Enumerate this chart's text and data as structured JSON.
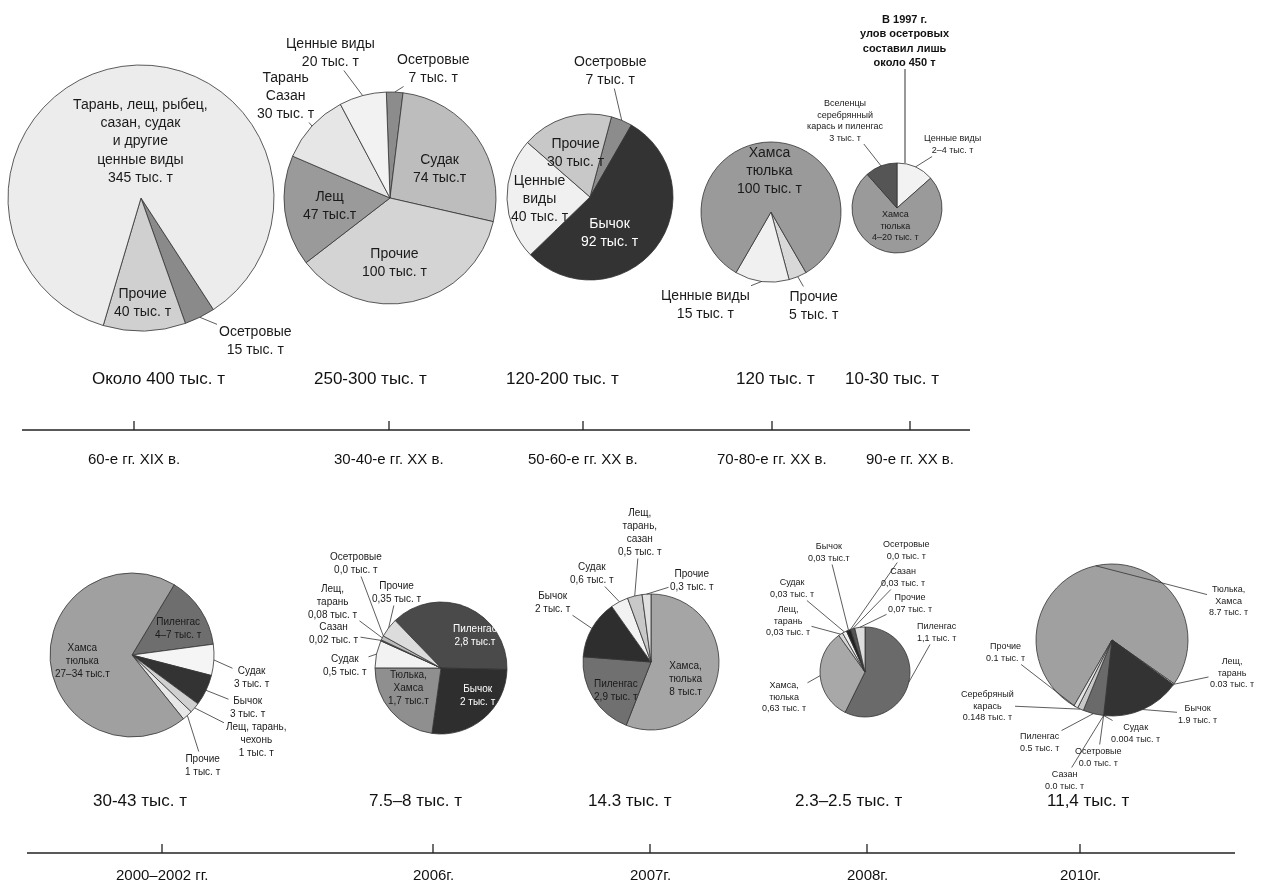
{
  "chart_data": [
    {
      "type": "pie",
      "subtitle": "Около 400 тыс. т",
      "xlabel": "60-е гг. XIX в.",
      "categories": [
        "Осетровые",
        "Прочие",
        "Тарань, лещ, рыбец,\nсазан, судак\nи другие\nценные виды"
      ],
      "values": [
        15,
        40,
        345
      ],
      "value_labels": [
        "15 тыс. т",
        "40 тыс. т",
        "345 тыс. т"
      ],
      "colors": [
        "#8a8a8a",
        "#d0d0d0",
        "#ececec"
      ]
    },
    {
      "type": "pie",
      "subtitle": "250-300 тыс. т",
      "xlabel": "30-40-е гг. XX в.",
      "categories": [
        "Осетровые",
        "Судак",
        "Прочие",
        "Лещ",
        "Тарань\nСазан",
        "Ценные виды"
      ],
      "values": [
        7,
        74,
        100,
        47,
        30,
        20
      ],
      "value_labels": [
        "7 тыс. т",
        "74 тыс.т",
        "100 тыс. т",
        "47 тыс.т",
        "30 тыс. т",
        "20 тыс. т"
      ],
      "colors": [
        "#8c8c8c",
        "#bdbdbd",
        "#d4d4d4",
        "#9a9a9a",
        "#e6e6e6",
        "#f2f2f2"
      ]
    },
    {
      "type": "pie",
      "subtitle": "120-200 тыс. т",
      "xlabel": "50-60-е гг. XX в.",
      "categories": [
        "Осетровые",
        "Бычок",
        "Ценные\nвиды",
        "Прочие"
      ],
      "values": [
        7,
        92,
        40,
        30
      ],
      "value_labels": [
        "7 тыс. т",
        "92 тыс. т",
        "40 тыс. т",
        "30 тыс. т"
      ],
      "colors": [
        "#8c8c8c",
        "#333333",
        "#f0f0f0",
        "#c8c8c8"
      ]
    },
    {
      "type": "pie",
      "subtitle": "120 тыс. т",
      "xlabel": "70-80-е гг. XX в.",
      "categories": [
        "Прочие",
        "Ценные виды",
        "Хамса\nтюлька"
      ],
      "values": [
        5,
        15,
        100
      ],
      "value_labels": [
        "5 тыс. т",
        "15 тыс. т",
        "100 тыс. т"
      ],
      "colors": [
        "#d8d8d8",
        "#f0f0f0",
        "#9a9a9a"
      ]
    },
    {
      "type": "pie",
      "subtitle": "10-30 тыс. т",
      "xlabel": "90-е гг. XX в.",
      "categories": [
        "Ценные виды",
        "Хамса\nтюлька",
        "Вселенцы\nсеребрянный\nкарась и пиленгас"
      ],
      "values": [
        3.5,
        19.5,
        3
      ],
      "value_labels": [
        "2–4 тыс. т",
        "4–20 тыс. т",
        "3 тыс. т"
      ],
      "colors": [
        "#f2f2f2",
        "#9a9a9a",
        "#555555"
      ],
      "annotations": [
        "В 1997 г.\nулов осетровых\nсоставил лишь\nоколо 450 т"
      ]
    },
    {
      "type": "pie",
      "subtitle": "30-43 тыс. т",
      "xlabel": "2000–2002 гг.",
      "categories": [
        "Пиленгас",
        "Судак",
        "Бычок",
        "Лещ, тарань,\nчехонь",
        "Прочие",
        "Хамса\nтюлька"
      ],
      "values": [
        7,
        3,
        3,
        1,
        1,
        34
      ],
      "value_labels": [
        "4–7 тыс. т",
        "3 тыс. т",
        "3 тыс. т",
        "1 тыс. т",
        "1 тыс. т",
        "27–34 тыс.т"
      ],
      "colors": [
        "#6e6e6e",
        "#f5f5f5",
        "#333333",
        "#d0d0d0",
        "#e8e8e8",
        "#a0a0a0"
      ]
    },
    {
      "type": "pie",
      "subtitle": "7.5–8 тыс. т",
      "xlabel": "2006г.",
      "categories": [
        "Пиленгас",
        "Бычок",
        "Тюлька,\nХамса",
        "Судак",
        "Сазан",
        "Лещ,\nтарань",
        "Осетровые",
        "Прочие"
      ],
      "values": [
        2.8,
        2,
        1.7,
        0.5,
        0.02,
        0.08,
        0,
        0.35
      ],
      "value_labels": [
        "2,8 тыс.т",
        "2 тыс. т",
        "1,7 тыс.т",
        "0,5 тыс. т",
        "0,02 тыс. т",
        "0,08 тыс. т",
        "0,0 тыс. т",
        "0,35 тыс. т"
      ],
      "colors": [
        "#4a4a4a",
        "#2e2e2e",
        "#8f8f8f",
        "#f2f2f2",
        "#555555",
        "#bbbbbb",
        "#777777",
        "#dcdcdc"
      ]
    },
    {
      "type": "pie",
      "subtitle": "14.3 тыс. т",
      "xlabel": "2007г.",
      "categories": [
        "Хамса,\nтюлька",
        "Пиленгас",
        "Бычок",
        "Судак",
        "Лещ,\nтарань,\nсазан",
        "Прочие"
      ],
      "values": [
        8,
        2.9,
        2,
        0.6,
        0.5,
        0.3
      ],
      "value_labels": [
        "8 тыс.т",
        "2,9 тыс. т",
        "2 тыс. т",
        "0,6 тыс. т",
        "0,5 тыс. т",
        "0,3 тыс. т"
      ],
      "colors": [
        "#a5a5a5",
        "#707070",
        "#2e2e2e",
        "#f2f2f2",
        "#c8c8c8",
        "#e0e0e0"
      ]
    },
    {
      "type": "pie",
      "subtitle": "2.3–2.5 тыс. т",
      "xlabel": "2008г.",
      "categories": [
        "Пиленгас",
        "Хамса,\nтюлька",
        "Лещ,\nтарань",
        "Судак",
        "Бычок",
        "Осетровые",
        "Сазан",
        "Прочие"
      ],
      "values": [
        1.1,
        0.63,
        0.03,
        0.03,
        0.03,
        0,
        0.03,
        0.07
      ],
      "value_labels": [
        "1,1 тыс. т",
        "0,63 тыс. т",
        "0,03 тыс. т",
        "0,03 тыс. т",
        "0,03 тыс.т",
        "0,0 тыс. т",
        "0,03 тыс. т",
        "0,07 тыс. т"
      ],
      "colors": [
        "#6a6a6a",
        "#a8a8a8",
        "#d8d8d8",
        "#f0f0f0",
        "#222222",
        "#777777",
        "#555555",
        "#dddddd"
      ]
    },
    {
      "type": "pie",
      "subtitle": "11,4 тыс. т",
      "xlabel": "2010г.",
      "categories": [
        "Тюлька,\nХамса",
        "Лещ,\nтарань",
        "Бычок",
        "Судак",
        "Осетровые",
        "Сазан",
        "Пиленгас",
        "Серебряный\nкарась",
        "Прочие"
      ],
      "values": [
        8.7,
        0.03,
        1.9,
        0.004,
        0,
        0,
        0.5,
        0.148,
        0.1
      ],
      "value_labels": [
        "8.7 тыс. т",
        "0.03 тыс. т",
        "1.9 тыс. т",
        "0.004 тыс. т",
        "0.0 тыс. т",
        "0.0 тыс. т",
        "0.5 тыс. т",
        "0.148 тыс. т",
        "0.1 тыс. т"
      ],
      "colors": [
        "#a0a0a0",
        "#e0e0e0",
        "#333333",
        "#888888",
        "#666666",
        "#777777",
        "#6a6a6a",
        "#c8c8c8",
        "#e6e6e6"
      ]
    }
  ]
}
